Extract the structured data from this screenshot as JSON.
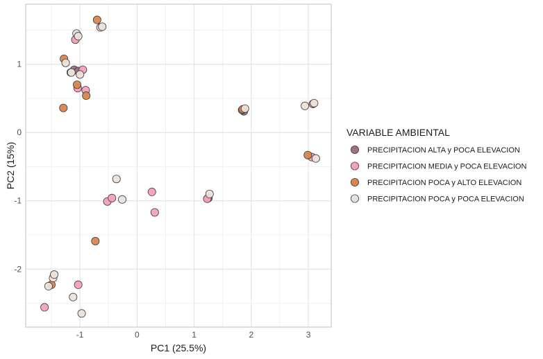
{
  "chart_data": {
    "type": "scatter",
    "xlabel": "PC1 (25.5%)",
    "ylabel": "PC2 (15%)",
    "xlim": [
      -1.95,
      3.4
    ],
    "ylim": [
      -2.85,
      1.88
    ],
    "x_ticks": [
      -1,
      0,
      1,
      2,
      3
    ],
    "y_ticks": [
      -2,
      -1,
      0,
      1
    ],
    "grid": true,
    "legend": {
      "title": "VARIABLE AMBIENTAL",
      "position": "right"
    },
    "series": [
      {
        "name": "PRECIPITACION ALTA y POCA ELEVACION",
        "color": "#9e7088",
        "points": [
          [
            -1.1,
            0.92
          ],
          [
            -1.03,
            0.9
          ],
          [
            1.25,
            -0.96
          ],
          [
            1.87,
            0.31
          ],
          [
            -1.05,
            1.43
          ]
        ]
      },
      {
        "name": "PRECIPITACION MEDIA y POCA ELEVACION",
        "color": "#f5a0be",
        "points": [
          [
            -1.08,
            1.36
          ],
          [
            -0.95,
            0.92
          ],
          [
            -1.04,
            0.65
          ],
          [
            -0.9,
            0.62
          ],
          [
            -1.62,
            -2.56
          ],
          [
            -1.03,
            -2.23
          ],
          [
            -0.52,
            -1.01
          ],
          [
            -0.44,
            -0.96
          ],
          [
            0.26,
            -0.87
          ],
          [
            0.31,
            -1.17
          ],
          [
            1.23,
            -0.97
          ],
          [
            1.84,
            0.33
          ],
          [
            3.08,
            0.42
          ],
          [
            3.06,
            -0.36
          ],
          [
            -1.16,
            0.88
          ]
        ]
      },
      {
        "name": "PRECIPITACION POCA y ALTO ELEVACION",
        "color": "#d8864f",
        "points": [
          [
            -0.7,
            1.65
          ],
          [
            -1.29,
            0.36
          ],
          [
            -0.89,
            0.54
          ],
          [
            -1.05,
            0.7
          ],
          [
            -1.28,
            1.08
          ],
          [
            -0.73,
            -1.59
          ],
          [
            -1.5,
            -2.23
          ],
          [
            2.99,
            -0.33
          ],
          [
            1.85,
            0.34
          ]
        ]
      },
      {
        "name": "PRECIPITACION POCA y POCA ELEVACION",
        "color": "#ece1d9",
        "points": [
          [
            -0.64,
            1.54
          ],
          [
            -0.61,
            1.55
          ],
          [
            -1.06,
            1.45
          ],
          [
            -1.03,
            1.41
          ],
          [
            -1.25,
            1.02
          ],
          [
            -1.15,
            0.88
          ],
          [
            -1.0,
            0.85
          ],
          [
            -0.36,
            -0.68
          ],
          [
            -0.26,
            -0.98
          ],
          [
            1.27,
            -0.9
          ],
          [
            -1.47,
            -2.13
          ],
          [
            -1.45,
            -2.08
          ],
          [
            -1.55,
            -2.25
          ],
          [
            -1.12,
            -2.41
          ],
          [
            -0.97,
            -2.65
          ],
          [
            1.89,
            0.35
          ],
          [
            2.94,
            0.39
          ],
          [
            3.1,
            0.43
          ],
          [
            3.13,
            -0.38
          ]
        ]
      }
    ]
  }
}
